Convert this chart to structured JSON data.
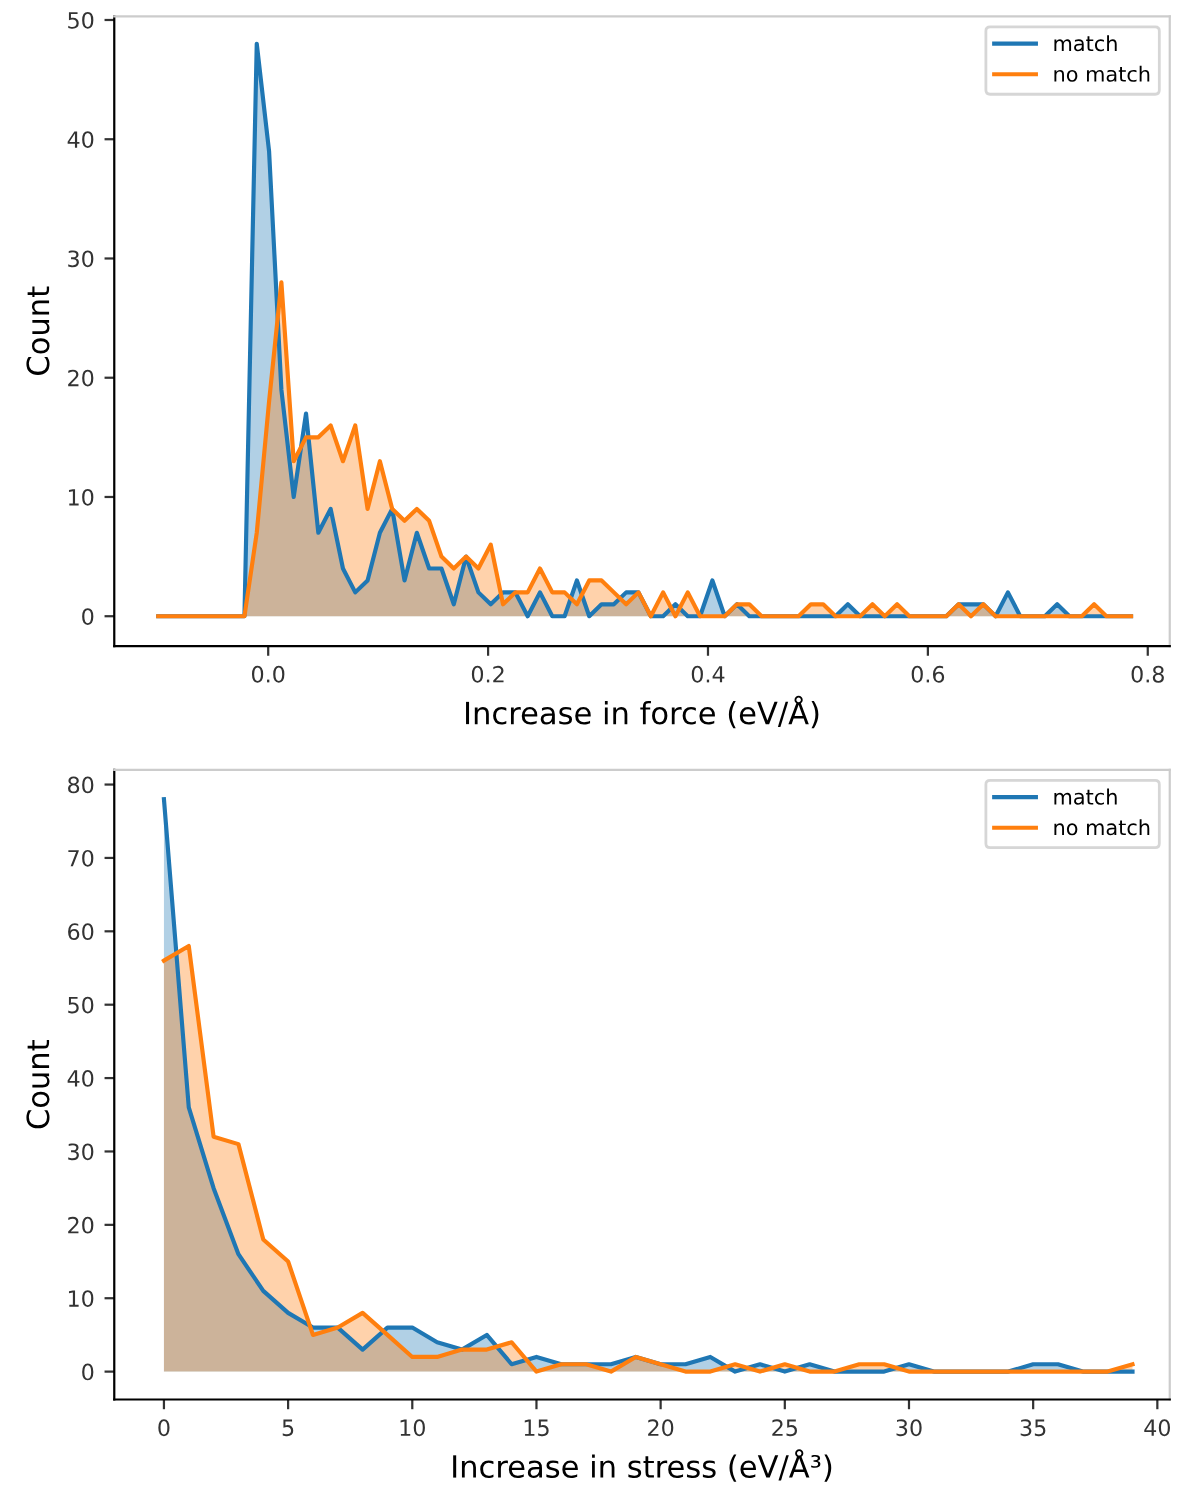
{
  "chart_data": [
    {
      "type": "area",
      "xlabel": "Increase in force (eV/Å)",
      "ylabel": "Count",
      "legend": "top right",
      "grid": false,
      "x": [
        -0.1,
        -0.0888,
        -0.0776,
        -0.0664,
        -0.0552,
        -0.044,
        -0.0328,
        -0.0216,
        -0.0104,
        0.0008,
        0.012,
        0.0232,
        0.0344,
        0.0456,
        0.0568,
        0.068,
        0.0792,
        0.0904,
        0.1016,
        0.1128,
        0.124,
        0.1352,
        0.1464,
        0.1576,
        0.1688,
        0.18,
        0.1912,
        0.2024,
        0.2136,
        0.2248,
        0.236,
        0.2472,
        0.2584,
        0.2696,
        0.2808,
        0.292,
        0.3032,
        0.3144,
        0.3256,
        0.3368,
        0.348,
        0.3592,
        0.3704,
        0.3816,
        0.3928,
        0.404,
        0.4152,
        0.4264,
        0.4376,
        0.4488,
        0.46,
        0.4712,
        0.4824,
        0.4936,
        0.5048,
        0.516,
        0.5272,
        0.5384,
        0.5496,
        0.5608,
        0.572,
        0.5832,
        0.5944,
        0.6056,
        0.6168,
        0.628,
        0.6392,
        0.6504,
        0.6616,
        0.6728,
        0.684,
        0.6952,
        0.7064,
        0.7176,
        0.7288,
        0.74,
        0.7512,
        0.7624,
        0.7736,
        0.7848
      ],
      "series": [
        {
          "name": "match",
          "color": "#1f77b4",
          "values": [
            0,
            0,
            0,
            0,
            0,
            0,
            0,
            0,
            48,
            39,
            19,
            10,
            17,
            7,
            9,
            4,
            2,
            3,
            7,
            9,
            3,
            7,
            4,
            4,
            1,
            5,
            2,
            1,
            2,
            2,
            0,
            2,
            0,
            0,
            3,
            0,
            1,
            1,
            2,
            2,
            0,
            0,
            1,
            0,
            0,
            3,
            0,
            1,
            0,
            0,
            0,
            0,
            0,
            0,
            0,
            0,
            1,
            0,
            0,
            0,
            0,
            0,
            0,
            0,
            0,
            1,
            1,
            1,
            0,
            2,
            0,
            0,
            0,
            1,
            0,
            0,
            0,
            0,
            0,
            0
          ]
        },
        {
          "name": "no match",
          "color": "#ff7f0e",
          "values": [
            0,
            0,
            0,
            0,
            0,
            0,
            0,
            0,
            7,
            18,
            28,
            13,
            15,
            15,
            16,
            13,
            16,
            9,
            13,
            9,
            8,
            9,
            8,
            5,
            4,
            5,
            4,
            6,
            1,
            2,
            2,
            4,
            2,
            2,
            1,
            3,
            3,
            2,
            1,
            2,
            0,
            2,
            0,
            2,
            0,
            0,
            0,
            1,
            1,
            0,
            0,
            0,
            0,
            1,
            1,
            0,
            0,
            0,
            1,
            0,
            1,
            0,
            0,
            0,
            0,
            1,
            0,
            1,
            0,
            0,
            0,
            0,
            0,
            0,
            0,
            0,
            1,
            0,
            0,
            0
          ]
        }
      ],
      "xlim": [
        -0.14,
        0.82
      ],
      "ylim": [
        -2.5,
        50.3
      ],
      "xticks": [
        {
          "value": 0,
          "label": "0.0"
        },
        {
          "value": 0.2,
          "label": "0.2"
        },
        {
          "value": 0.4,
          "label": "0.4"
        },
        {
          "value": 0.6,
          "label": "0.6"
        },
        {
          "value": 0.8,
          "label": "0.8"
        }
      ],
      "yticks": [
        0,
        10,
        20,
        30,
        40,
        50
      ]
    },
    {
      "type": "area",
      "xlabel": "Increase in stress (eV/Å³)",
      "ylabel": "Count",
      "legend": "top right",
      "grid": false,
      "x": [
        0,
        1,
        2,
        3,
        4,
        5,
        6,
        7,
        8,
        9,
        10,
        11,
        12,
        13,
        14,
        15,
        16,
        17,
        18,
        19,
        20,
        21,
        22,
        23,
        24,
        25,
        26,
        27,
        28,
        29,
        30,
        31,
        32,
        33,
        34,
        35,
        36,
        37,
        38,
        39
      ],
      "series": [
        {
          "name": "match",
          "color": "#1f77b4",
          "values": [
            78,
            36,
            25,
            16,
            11,
            8,
            6,
            6,
            3,
            6,
            6,
            4,
            3,
            5,
            1,
            2,
            1,
            1,
            1,
            2,
            1,
            1,
            2,
            0,
            1,
            0,
            1,
            0,
            0,
            0,
            1,
            0,
            0,
            0,
            0,
            1,
            1,
            0,
            0,
            0
          ]
        },
        {
          "name": "no match",
          "color": "#ff7f0e",
          "values": [
            56,
            58,
            32,
            31,
            18,
            15,
            5,
            6,
            8,
            5,
            2,
            2,
            3,
            3,
            4,
            0,
            1,
            1,
            0,
            2,
            1,
            0,
            0,
            1,
            0,
            1,
            0,
            0,
            1,
            1,
            0,
            0,
            0,
            0,
            0,
            0,
            0,
            0,
            0,
            1
          ]
        }
      ],
      "xlim": [
        -2,
        40.5
      ],
      "ylim": [
        -3.8,
        82
      ],
      "xticks": [
        0,
        5,
        10,
        15,
        20,
        25,
        30,
        35,
        40
      ],
      "yticks": [
        0,
        10,
        20,
        30,
        40,
        50,
        60,
        70,
        80
      ]
    }
  ]
}
